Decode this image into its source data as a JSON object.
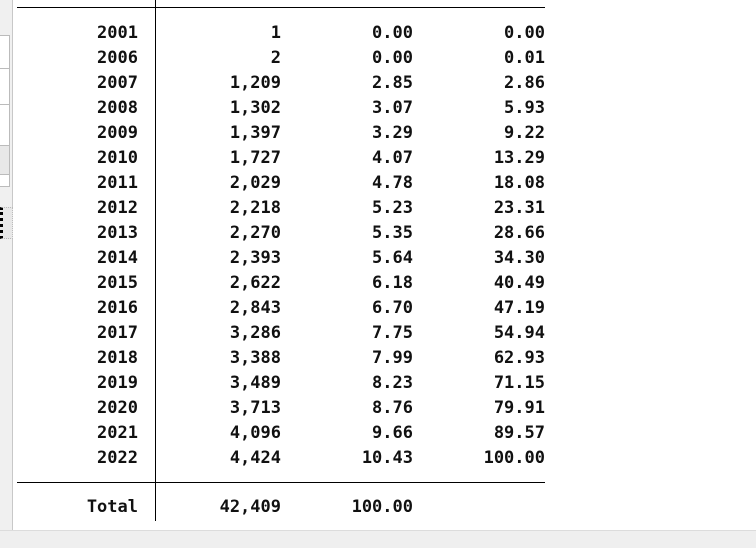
{
  "table": {
    "rows": [
      {
        "year": "2001",
        "freq": "1",
        "percent": "0.00",
        "cum": "0.00"
      },
      {
        "year": "2006",
        "freq": "2",
        "percent": "0.00",
        "cum": "0.01"
      },
      {
        "year": "2007",
        "freq": "1,209",
        "percent": "2.85",
        "cum": "2.86"
      },
      {
        "year": "2008",
        "freq": "1,302",
        "percent": "3.07",
        "cum": "5.93"
      },
      {
        "year": "2009",
        "freq": "1,397",
        "percent": "3.29",
        "cum": "9.22"
      },
      {
        "year": "2010",
        "freq": "1,727",
        "percent": "4.07",
        "cum": "13.29"
      },
      {
        "year": "2011",
        "freq": "2,029",
        "percent": "4.78",
        "cum": "18.08"
      },
      {
        "year": "2012",
        "freq": "2,218",
        "percent": "5.23",
        "cum": "23.31"
      },
      {
        "year": "2013",
        "freq": "2,270",
        "percent": "5.35",
        "cum": "28.66"
      },
      {
        "year": "2014",
        "freq": "2,393",
        "percent": "5.64",
        "cum": "34.30"
      },
      {
        "year": "2015",
        "freq": "2,622",
        "percent": "6.18",
        "cum": "40.49"
      },
      {
        "year": "2016",
        "freq": "2,843",
        "percent": "6.70",
        "cum": "47.19"
      },
      {
        "year": "2017",
        "freq": "3,286",
        "percent": "7.75",
        "cum": "54.94"
      },
      {
        "year": "2018",
        "freq": "3,388",
        "percent": "7.99",
        "cum": "62.93"
      },
      {
        "year": "2019",
        "freq": "3,489",
        "percent": "8.23",
        "cum": "71.15"
      },
      {
        "year": "2020",
        "freq": "3,713",
        "percent": "8.76",
        "cum": "79.91"
      },
      {
        "year": "2021",
        "freq": "4,096",
        "percent": "9.66",
        "cum": "89.57"
      },
      {
        "year": "2022",
        "freq": "4,424",
        "percent": "10.43",
        "cum": "100.00"
      }
    ],
    "total": {
      "label": "Total",
      "freq": "42,409",
      "percent": "100.00"
    }
  }
}
